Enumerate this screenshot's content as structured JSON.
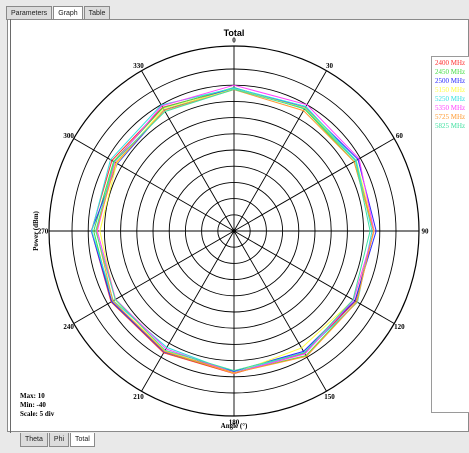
{
  "tabs_top": [
    {
      "label": "Parameters",
      "active": false
    },
    {
      "label": "Graph",
      "active": true
    },
    {
      "label": "Table",
      "active": false
    }
  ],
  "tabs_bottom": [
    {
      "label": "Theta",
      "active": false
    },
    {
      "label": "Phi",
      "active": false
    },
    {
      "label": "Total",
      "active": true
    }
  ],
  "info": {
    "max": "Max: 10",
    "min": "Min: -40",
    "scale": "Scale: 5 div"
  },
  "chart_data": {
    "type": "polar-line",
    "title": "Total",
    "xlabel": "Angle  (°)",
    "ylabel": "Power  (dBm)",
    "range": [
      -40,
      10
    ],
    "ring_step": 5,
    "angle_ticks": [
      0,
      30,
      60,
      90,
      120,
      150,
      180,
      210,
      240,
      270,
      300,
      330
    ],
    "angle_labels": [
      "0",
      "330",
      "300",
      "270",
      "240",
      "210",
      "180",
      "150",
      "120",
      "90",
      "60",
      "30"
    ],
    "angles_deg": [
      0,
      30,
      60,
      90,
      120,
      150,
      180,
      210,
      240,
      270,
      300,
      330
    ],
    "series": [
      {
        "name": "2400 MHz",
        "color": "#ff3030",
        "values": [
          4.0,
          4.1,
          3.5,
          4.0,
          3.8,
          3.4,
          4.0,
          3.6,
          3.3,
          3.2,
          3.4,
          3.6
        ]
      },
      {
        "name": "2450 MHz",
        "color": "#44dd44",
        "values": [
          4.3,
          3.9,
          2.9,
          3.3,
          3.6,
          3.1,
          3.8,
          4.4,
          3.7,
          3.1,
          2.8,
          3.5
        ]
      },
      {
        "name": "2500 MHz",
        "color": "#2a2aff",
        "values": [
          4.2,
          3.1,
          1.6,
          4.0,
          3.6,
          3.1,
          3.3,
          2.9,
          3.1,
          3.9,
          4.2,
          4.0
        ]
      },
      {
        "name": "5150 MHz",
        "color": "#ffff40",
        "values": [
          3.8,
          3.5,
          1.8,
          1.4,
          2.4,
          2.7,
          3.9,
          1.7,
          2.6,
          3.3,
          3.6,
          3.9
        ]
      },
      {
        "name": "5250 MHz",
        "color": "#30e0e0",
        "values": [
          4.1,
          4.9,
          4.0,
          3.9,
          3.0,
          1.5,
          3.7,
          3.3,
          4.0,
          2.6,
          3.5,
          4.4
        ]
      },
      {
        "name": "5350 MHz",
        "color": "#ff40ff",
        "values": [
          5.0,
          4.6,
          2.5,
          2.2,
          2.2,
          2.0,
          3.8,
          3.8,
          2.6,
          3.2,
          4.6,
          5.0
        ]
      },
      {
        "name": "5725 MHz",
        "color": "#ff9a30",
        "values": [
          3.6,
          3.0,
          2.1,
          2.5,
          3.2,
          2.9,
          3.8,
          4.7,
          3.8,
          3.1,
          2.8,
          2.9
        ]
      },
      {
        "name": "5825 MHz",
        "color": "#40e0a0",
        "values": [
          3.7,
          2.6,
          2.7,
          2.7,
          2.3,
          2.5,
          3.1,
          3.4,
          2.4,
          2.0,
          3.3,
          3.7
        ]
      }
    ]
  }
}
